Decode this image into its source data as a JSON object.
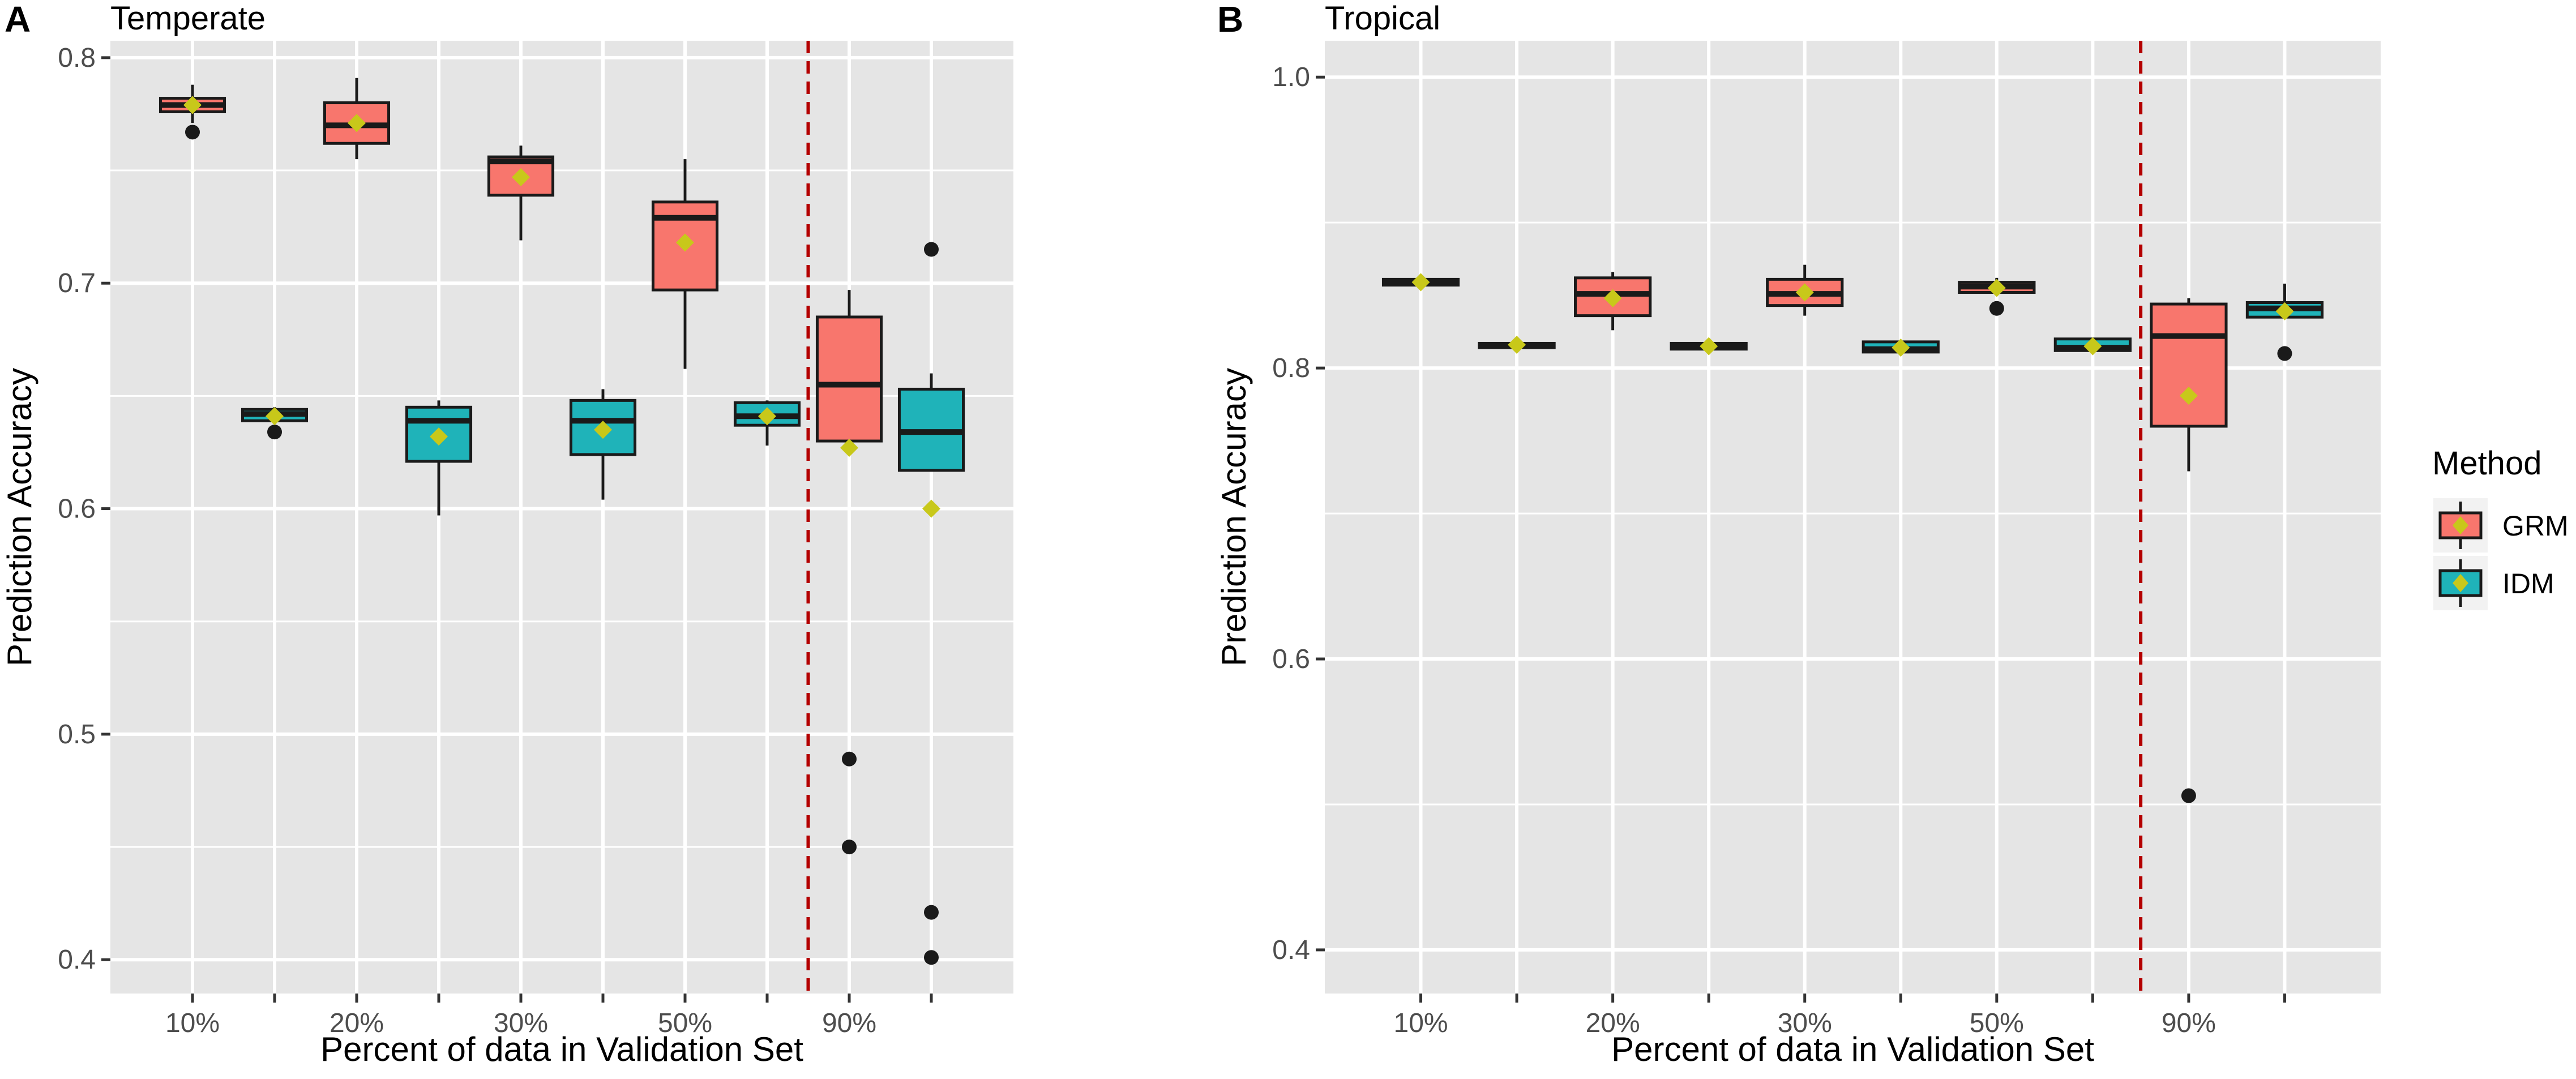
{
  "figure_colors": {
    "panel_bg": "#e5e5e5",
    "grid": "#ffffff",
    "grm": "#f8766d",
    "idm": "#1fb3b9",
    "mean_marker": "#c8c81a",
    "outline": "#1a1a1a",
    "divider": "#b40000",
    "tick_text": "#4d4d4d"
  },
  "legend": {
    "title": "Method",
    "items": [
      {
        "label": "GRM",
        "color": "#f8766d"
      },
      {
        "label": "IDM",
        "color": "#1fb3b9"
      }
    ]
  },
  "chart_data": [
    {
      "type": "box",
      "panel_letter": "A",
      "title": "Temperate",
      "xlabel": "Percent of data in Validation Set",
      "ylabel": "Prediction Accuracy",
      "ylim": [
        0.385,
        0.8075
      ],
      "yticks": [
        0.4,
        0.5,
        0.6,
        0.7,
        0.8
      ],
      "ytick_labels": [
        "0.4",
        "0.5",
        "0.6",
        "0.7",
        "0.8"
      ],
      "x_tick_labels": [
        "10%",
        "",
        "20%",
        "",
        "30%",
        "",
        "50%",
        "",
        "90%",
        ""
      ],
      "divider_after_slot": 8,
      "series": [
        {
          "name": "GRM",
          "boxes": [
            {
              "slot": 1,
              "whislo": 0.771,
              "q1": 0.776,
              "med": 0.779,
              "q3": 0.782,
              "whishi": 0.788,
              "mean": 0.779,
              "fliers": [
                0.767
              ]
            },
            {
              "slot": 3,
              "whislo": 0.755,
              "q1": 0.762,
              "med": 0.77,
              "q3": 0.78,
              "whishi": 0.791,
              "mean": 0.771,
              "fliers": []
            },
            {
              "slot": 5,
              "whislo": 0.719,
              "q1": 0.739,
              "med": 0.754,
              "q3": 0.756,
              "whishi": 0.761,
              "mean": 0.747,
              "fliers": []
            },
            {
              "slot": 7,
              "whislo": 0.662,
              "q1": 0.697,
              "med": 0.729,
              "q3": 0.736,
              "whishi": 0.755,
              "mean": 0.718,
              "fliers": []
            },
            {
              "slot": 9,
              "whislo": 0.63,
              "q1": 0.63,
              "med": 0.655,
              "q3": 0.685,
              "whishi": 0.697,
              "mean": 0.627,
              "fliers": [
                0.489,
                0.45
              ]
            }
          ]
        },
        {
          "name": "IDM",
          "boxes": [
            {
              "slot": 2,
              "whislo": 0.638,
              "q1": 0.639,
              "med": 0.642,
              "q3": 0.644,
              "whishi": 0.645,
              "mean": 0.641,
              "fliers": [
                0.634
              ]
            },
            {
              "slot": 4,
              "whislo": 0.597,
              "q1": 0.621,
              "med": 0.639,
              "q3": 0.645,
              "whishi": 0.648,
              "mean": 0.632,
              "fliers": []
            },
            {
              "slot": 6,
              "whislo": 0.604,
              "q1": 0.624,
              "med": 0.639,
              "q3": 0.648,
              "whishi": 0.653,
              "mean": 0.635,
              "fliers": []
            },
            {
              "slot": 8,
              "whislo": 0.628,
              "q1": 0.637,
              "med": 0.641,
              "q3": 0.647,
              "whishi": 0.648,
              "mean": 0.641,
              "fliers": []
            },
            {
              "slot": 10,
              "whislo": 0.617,
              "q1": 0.617,
              "med": 0.634,
              "q3": 0.653,
              "whishi": 0.66,
              "mean": 0.6,
              "fliers": [
                0.715,
                0.421,
                0.401
              ]
            }
          ]
        }
      ]
    },
    {
      "type": "box",
      "panel_letter": "B",
      "title": "Tropical",
      "xlabel": "Percent of data in Validation Set",
      "ylabel": "Prediction Accuracy",
      "ylim": [
        0.37,
        1.025
      ],
      "yticks": [
        0.4,
        0.6,
        0.8,
        1.0
      ],
      "ytick_labels": [
        "0.4",
        "0.6",
        "0.8",
        "1.0"
      ],
      "x_tick_labels": [
        "10%",
        "",
        "20%",
        "",
        "30%",
        "",
        "50%",
        "",
        "90%",
        ""
      ],
      "divider_after_slot": 8,
      "series": [
        {
          "name": "GRM",
          "boxes": [
            {
              "slot": 1,
              "whislo": 0.857,
              "q1": 0.857,
              "med": 0.859,
              "q3": 0.861,
              "whishi": 0.861,
              "mean": 0.859,
              "fliers": []
            },
            {
              "slot": 3,
              "whislo": 0.826,
              "q1": 0.836,
              "med": 0.851,
              "q3": 0.862,
              "whishi": 0.866,
              "mean": 0.848,
              "fliers": []
            },
            {
              "slot": 5,
              "whislo": 0.836,
              "q1": 0.843,
              "med": 0.851,
              "q3": 0.861,
              "whishi": 0.871,
              "mean": 0.852,
              "fliers": []
            },
            {
              "slot": 7,
              "whislo": 0.852,
              "q1": 0.852,
              "med": 0.856,
              "q3": 0.859,
              "whishi": 0.862,
              "mean": 0.855,
              "fliers": [
                0.841
              ]
            },
            {
              "slot": 9,
              "whislo": 0.729,
              "q1": 0.76,
              "med": 0.822,
              "q3": 0.844,
              "whishi": 0.848,
              "mean": 0.781,
              "fliers": [
                0.506
              ]
            }
          ]
        },
        {
          "name": "IDM",
          "boxes": [
            {
              "slot": 2,
              "whislo": 0.814,
              "q1": 0.814,
              "med": 0.816,
              "q3": 0.817,
              "whishi": 0.817,
              "mean": 0.816,
              "fliers": []
            },
            {
              "slot": 4,
              "whislo": 0.813,
              "q1": 0.813,
              "med": 0.815,
              "q3": 0.817,
              "whishi": 0.817,
              "mean": 0.815,
              "fliers": []
            },
            {
              "slot": 6,
              "whislo": 0.811,
              "q1": 0.811,
              "med": 0.813,
              "q3": 0.818,
              "whishi": 0.818,
              "mean": 0.814,
              "fliers": []
            },
            {
              "slot": 8,
              "whislo": 0.812,
              "q1": 0.812,
              "med": 0.814,
              "q3": 0.82,
              "whishi": 0.82,
              "mean": 0.815,
              "fliers": []
            },
            {
              "slot": 10,
              "whislo": 0.835,
              "q1": 0.835,
              "med": 0.841,
              "q3": 0.845,
              "whishi": 0.858,
              "mean": 0.839,
              "fliers": [
                0.81
              ]
            }
          ]
        }
      ]
    }
  ]
}
